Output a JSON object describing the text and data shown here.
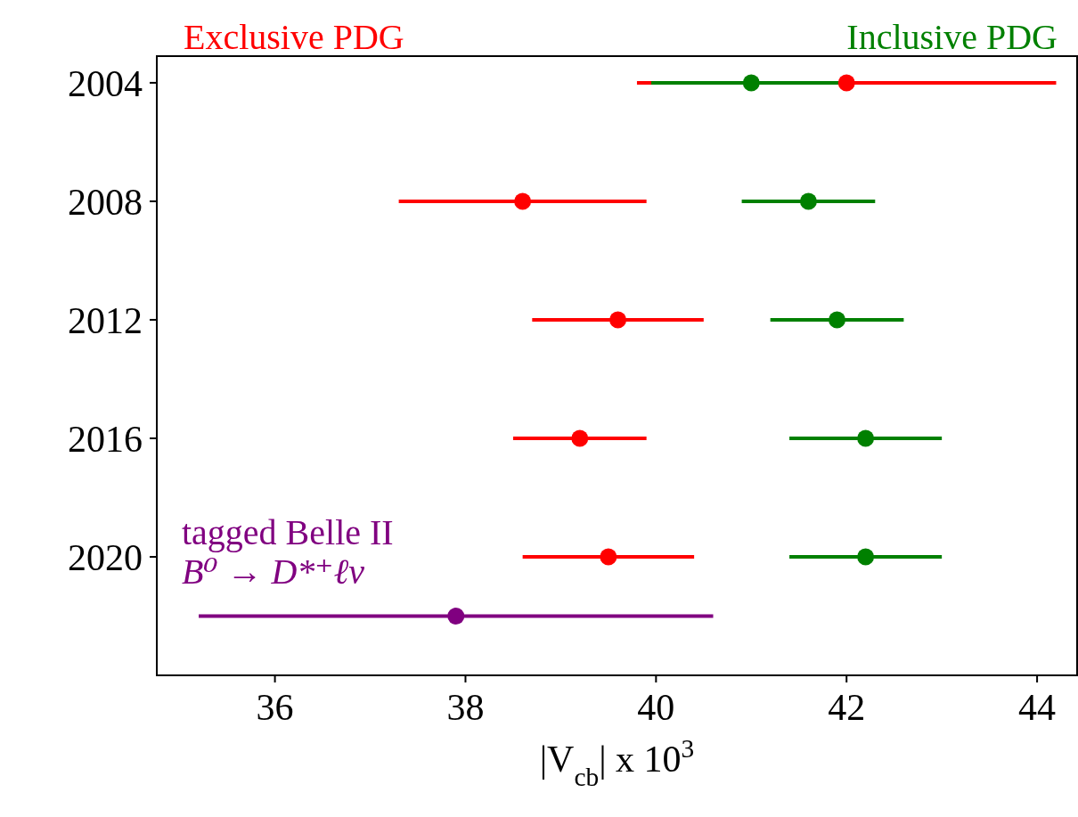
{
  "chart_data": {
    "type": "scatter",
    "xlabel": "|V$_{cb}$| x 10$^{3}$",
    "xlim": [
      34.76,
      44.42
    ],
    "xticks": [
      36,
      38,
      40,
      42,
      44
    ],
    "ylim": [
      2024,
      2003.1
    ],
    "yticks": [
      2004,
      2008,
      2012,
      2016,
      2020
    ],
    "marker": "circle",
    "legend": false,
    "grid": false,
    "series": [
      {
        "name": "Exclusive PDG",
        "color": "#ff0000",
        "x": [
          42.0,
          38.6,
          39.6,
          39.2,
          39.5
        ],
        "values": [
          2004,
          2008,
          2012,
          2016,
          2020
        ],
        "xerrors": [
          2.2,
          1.3,
          0.9,
          0.7,
          0.9
        ]
      },
      {
        "name": "Inclusive PDG",
        "color": "#008000",
        "x": [
          41.0,
          41.6,
          41.9,
          42.2,
          42.2
        ],
        "values": [
          2004,
          2008,
          2012,
          2016,
          2020
        ],
        "xerrors": [
          1.05,
          0.7,
          0.7,
          0.8,
          0.8
        ]
      },
      {
        "name": "tagged Belle II\nB⁰ → D*⁺ℓν",
        "color": "#800080",
        "x": [
          37.9
        ],
        "values": [
          2022
        ],
        "xerrors": [
          2.7
        ]
      }
    ]
  }
}
